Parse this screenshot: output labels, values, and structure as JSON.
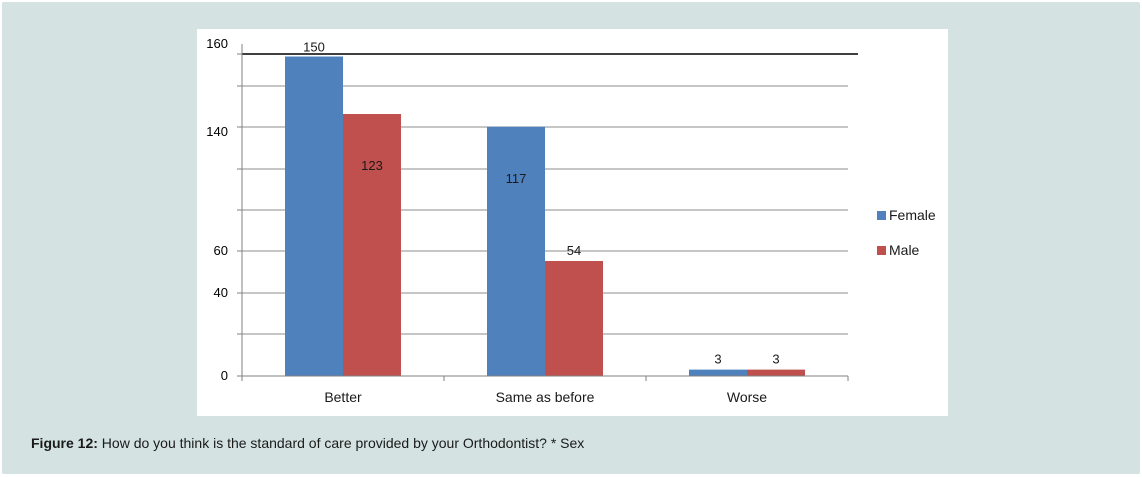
{
  "chart_data": {
    "type": "bar",
    "categories": [
      "Better",
      "Same as before",
      "Worse"
    ],
    "series": [
      {
        "name": "Female",
        "values": [
          150,
          117,
          3
        ],
        "color": "#4f81bd"
      },
      {
        "name": "Male",
        "values": [
          123,
          54,
          3
        ],
        "color": "#c0504d"
      }
    ],
    "data_labels": [
      [
        "150",
        "117",
        "3"
      ],
      [
        "123",
        "54",
        "3"
      ]
    ],
    "y_ticks": [
      "160",
      "140",
      "60",
      "40",
      "0"
    ],
    "grid": true,
    "legend": "right"
  },
  "caption": {
    "label": "Figure 12:",
    "text": "How do you think is the standard of care provided by your Orthodontist? * Sex"
  }
}
